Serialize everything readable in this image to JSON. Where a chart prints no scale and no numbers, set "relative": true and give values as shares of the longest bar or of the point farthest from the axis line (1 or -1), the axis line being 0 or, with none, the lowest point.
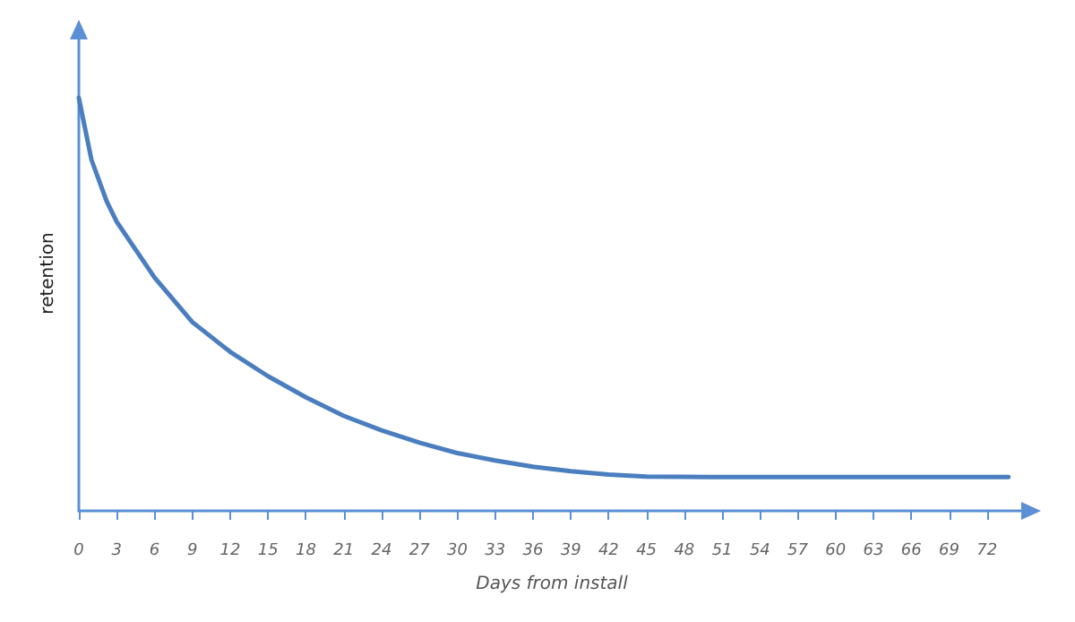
{
  "chart_data": {
    "type": "line",
    "relative": true,
    "xlabel": "Days from install",
    "ylabel": "retention",
    "xlim": [
      0,
      75
    ],
    "xticks": [
      0,
      3,
      6,
      9,
      12,
      15,
      18,
      21,
      24,
      27,
      30,
      33,
      36,
      39,
      42,
      45,
      48,
      51,
      54,
      57,
      60,
      63,
      66,
      69,
      72
    ],
    "series": [
      {
        "color": "#4a7ebf",
        "x": [
          0,
          1,
          2.2,
          3,
          6,
          9,
          12,
          15,
          18,
          21,
          24,
          27,
          30,
          33,
          36,
          39,
          42,
          45,
          50,
          55,
          60,
          65,
          70,
          73.7
        ],
        "values": [
          1,
          0.85,
          0.75,
          0.7,
          0.565,
          0.457,
          0.385,
          0.326,
          0.275,
          0.23,
          0.195,
          0.165,
          0.14,
          0.122,
          0.107,
          0.096,
          0.088,
          0.083,
          0.082,
          0.082,
          0.082,
          0.082,
          0.082,
          0.082
        ]
      }
    ],
    "grid": false,
    "marker": "none",
    "line_style": "solid"
  }
}
